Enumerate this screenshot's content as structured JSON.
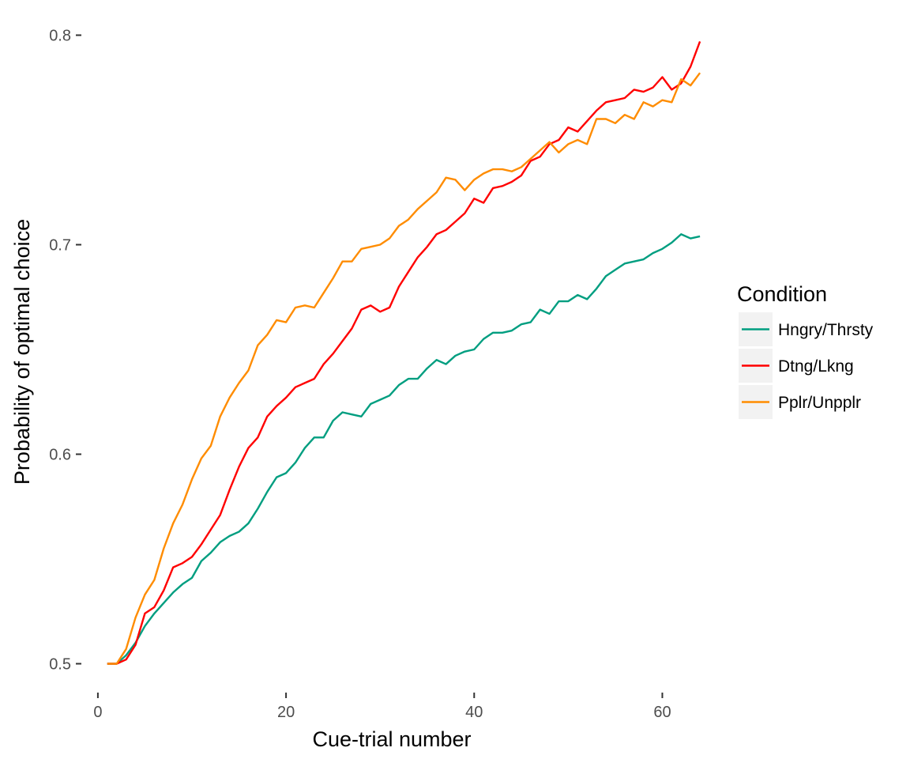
{
  "chart_data": {
    "type": "line",
    "xlabel": "Cue-trial number",
    "ylabel": "Probability of optimal choice",
    "xlim": [
      -1,
      65
    ],
    "ylim": [
      0.49,
      0.81
    ],
    "x_ticks": [
      0,
      20,
      40,
      60
    ],
    "x_tick_labels": [
      "0",
      "20",
      "40",
      "60"
    ],
    "y_ticks": [
      0.5,
      0.6,
      0.7,
      0.8
    ],
    "y_tick_labels": [
      "0.5",
      "0.6",
      "0.7",
      "0.8"
    ],
    "grid": false,
    "legend": {
      "title": "Condition",
      "position": "right"
    },
    "x": [
      1,
      2,
      3,
      4,
      5,
      6,
      7,
      8,
      9,
      10,
      11,
      12,
      13,
      14,
      15,
      16,
      17,
      18,
      19,
      20,
      21,
      22,
      23,
      24,
      25,
      26,
      27,
      28,
      29,
      30,
      31,
      32,
      33,
      34,
      35,
      36,
      37,
      38,
      39,
      40,
      41,
      42,
      43,
      44,
      45,
      46,
      47,
      48,
      49,
      50,
      51,
      52,
      53,
      54,
      55,
      56,
      57,
      58,
      59,
      60,
      61,
      62,
      63,
      64
    ],
    "series": [
      {
        "name": "Hngry/Thrsty",
        "color": "#009E80",
        "values": [
          0.5,
          0.5,
          0.504,
          0.51,
          0.518,
          0.524,
          0.529,
          0.534,
          0.538,
          0.541,
          0.549,
          0.553,
          0.558,
          0.561,
          0.563,
          0.567,
          0.574,
          0.582,
          0.589,
          0.591,
          0.596,
          0.603,
          0.608,
          0.608,
          0.616,
          0.62,
          0.619,
          0.618,
          0.624,
          0.626,
          0.628,
          0.633,
          0.636,
          0.636,
          0.641,
          0.645,
          0.643,
          0.647,
          0.649,
          0.65,
          0.655,
          0.658,
          0.658,
          0.659,
          0.662,
          0.663,
          0.669,
          0.667,
          0.673,
          0.673,
          0.676,
          0.674,
          0.679,
          0.685,
          0.688,
          0.691,
          0.692,
          0.693,
          0.696,
          0.698,
          0.701,
          0.705,
          0.703,
          0.704
        ]
      },
      {
        "name": "Dtng/Lkng",
        "color": "#FF0000",
        "values": [
          0.5,
          0.5,
          0.502,
          0.509,
          0.524,
          0.527,
          0.535,
          0.546,
          0.548,
          0.551,
          0.557,
          0.564,
          0.571,
          0.583,
          0.594,
          0.603,
          0.608,
          0.618,
          0.623,
          0.627,
          0.632,
          0.634,
          0.636,
          0.643,
          0.648,
          0.654,
          0.66,
          0.669,
          0.671,
          0.668,
          0.67,
          0.68,
          0.687,
          0.694,
          0.699,
          0.705,
          0.707,
          0.711,
          0.715,
          0.722,
          0.72,
          0.727,
          0.728,
          0.73,
          0.733,
          0.74,
          0.742,
          0.748,
          0.75,
          0.756,
          0.754,
          0.759,
          0.764,
          0.768,
          0.769,
          0.77,
          0.774,
          0.773,
          0.775,
          0.78,
          0.774,
          0.777,
          0.785,
          0.797
        ]
      },
      {
        "name": "Pplr/Unpplr",
        "color": "#FF8C00",
        "values": [
          0.5,
          0.5,
          0.507,
          0.522,
          0.533,
          0.54,
          0.555,
          0.567,
          0.576,
          0.588,
          0.598,
          0.604,
          0.618,
          0.627,
          0.634,
          0.64,
          0.652,
          0.657,
          0.664,
          0.663,
          0.67,
          0.671,
          0.67,
          0.677,
          0.684,
          0.692,
          0.692,
          0.698,
          0.699,
          0.7,
          0.703,
          0.709,
          0.712,
          0.717,
          0.721,
          0.725,
          0.732,
          0.731,
          0.726,
          0.731,
          0.734,
          0.736,
          0.736,
          0.735,
          0.737,
          0.741,
          0.745,
          0.749,
          0.744,
          0.748,
          0.75,
          0.748,
          0.76,
          0.76,
          0.758,
          0.762,
          0.76,
          0.768,
          0.766,
          0.769,
          0.768,
          0.779,
          0.776,
          0.782
        ]
      }
    ]
  }
}
